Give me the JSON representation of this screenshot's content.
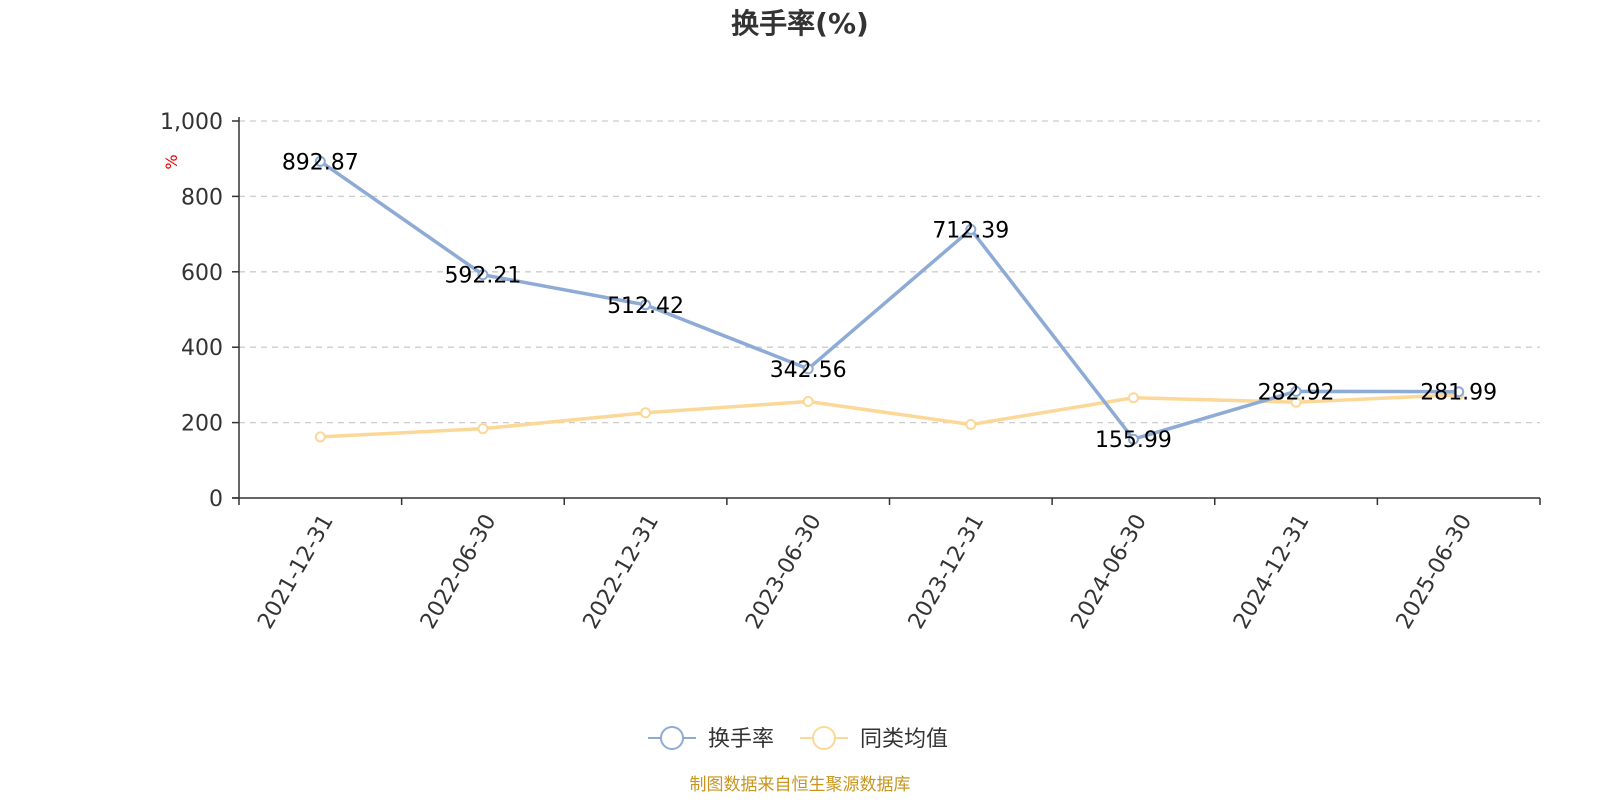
{
  "chart_data": {
    "type": "line",
    "title": "换手率(%)",
    "ylabel": "%",
    "ylim": [
      0,
      1000
    ],
    "yticks": [
      0,
      200,
      400,
      600,
      800,
      1000
    ],
    "ytick_labels": [
      "0",
      "200",
      "400",
      "600",
      "800",
      "1,000"
    ],
    "grid": true,
    "legend_position": "bottom",
    "categories": [
      "2021-12-31",
      "2022-06-30",
      "2022-12-31",
      "2023-06-30",
      "2023-12-31",
      "2024-06-30",
      "2024-12-31",
      "2025-06-30"
    ],
    "series": [
      {
        "name": "换手率",
        "color": "#8eabd6",
        "values": [
          892.87,
          592.21,
          512.42,
          342.56,
          712.39,
          155.99,
          282.92,
          281.99
        ],
        "labels": [
          "892.87",
          "592.21",
          "512.42",
          "342.56",
          "712.39",
          "155.99",
          "282.92",
          "281.99"
        ]
      },
      {
        "name": "同类均值",
        "color": "#fcd898",
        "values": [
          162,
          184,
          226,
          256,
          195,
          266,
          254,
          274
        ]
      }
    ],
    "source": "制图数据来自恒生聚源数据库"
  }
}
